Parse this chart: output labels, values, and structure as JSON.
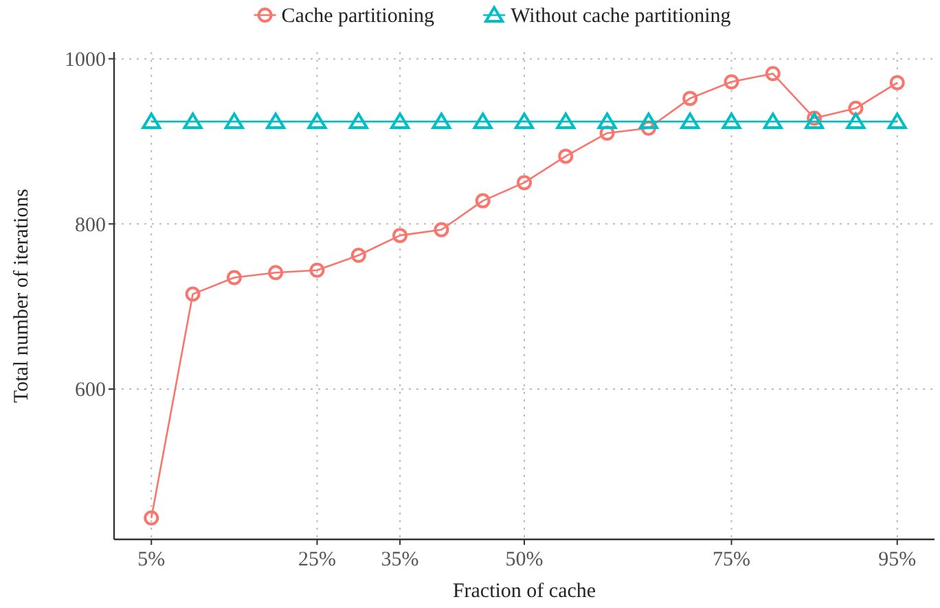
{
  "chart_data": {
    "type": "line",
    "xlabel": "Fraction of cache",
    "ylabel": "Total number of iterations",
    "x": [
      5,
      10,
      15,
      20,
      25,
      30,
      35,
      40,
      45,
      50,
      55,
      60,
      65,
      70,
      75,
      80,
      85,
      90,
      95
    ],
    "series": [
      {
        "name": "Cache partitioning",
        "color": "#f8766d",
        "marker": "circle",
        "values": [
          444,
          715,
          735,
          741,
          744,
          762,
          786,
          793,
          828,
          850,
          882,
          910,
          916,
          952,
          972,
          982,
          928,
          940,
          971
        ]
      },
      {
        "name": "Without cache partitioning",
        "color": "#00bfc4",
        "marker": "triangle",
        "values": [
          924,
          924,
          924,
          924,
          924,
          924,
          924,
          924,
          924,
          924,
          924,
          924,
          924,
          924,
          924,
          924,
          924,
          924,
          924
        ]
      }
    ],
    "xlim": [
      0.5,
      99.5
    ],
    "ylim": [
      418,
      1008
    ],
    "xticks": [
      {
        "value": 5,
        "label": "5%"
      },
      {
        "value": 25,
        "label": "25%"
      },
      {
        "value": 35,
        "label": "35%"
      },
      {
        "value": 50,
        "label": "50%"
      },
      {
        "value": 75,
        "label": "75%"
      },
      {
        "value": 95,
        "label": "95%"
      }
    ],
    "yticks": [
      600,
      800,
      1000
    ],
    "grid": true,
    "legend": "top",
    "line_style": "solid"
  }
}
